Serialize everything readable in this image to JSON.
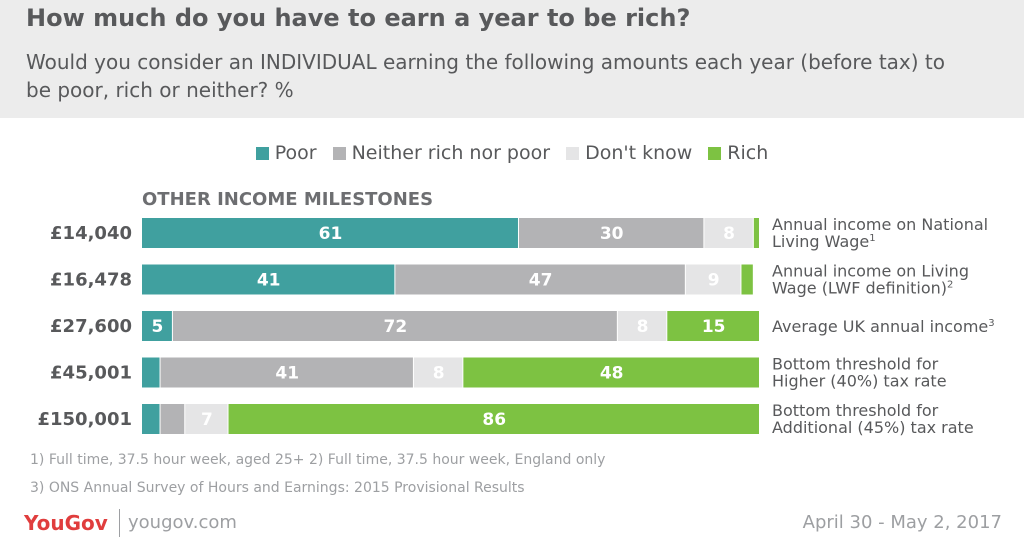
{
  "header": {
    "title": "How much do you have to earn a year to be rich?",
    "subtitle": "Would you consider an INDIVIDUAL earning the following amounts each year (before tax) to be poor, rich or neither? %"
  },
  "section_label": "OTHER INCOME MILESTONES",
  "chart_data": {
    "type": "bar",
    "orientation": "horizontal",
    "stacked": true,
    "categories": [
      "£14,040",
      "£16,478",
      "£27,600",
      "£45,001",
      "£150,001"
    ],
    "series": [
      {
        "name": "Poor",
        "color": "#40a09f",
        "values": [
          61,
          41,
          5,
          3,
          3
        ]
      },
      {
        "name": "Neither rich nor poor",
        "color": "#b3b3b5",
        "values": [
          30,
          47,
          72,
          41,
          4
        ]
      },
      {
        "name": "Don't know",
        "color": "#e5e5e6",
        "values": [
          8,
          9,
          8,
          8,
          7
        ]
      },
      {
        "name": "Rich",
        "color": "#7dc242",
        "values": [
          1,
          2,
          15,
          48,
          86
        ]
      }
    ],
    "data_labels": [
      [
        "61",
        "30",
        "8",
        ""
      ],
      [
        "41",
        "47",
        "9",
        ""
      ],
      [
        "5",
        "72",
        "8",
        "15"
      ],
      [
        "",
        "41",
        "8",
        "48"
      ],
      [
        "",
        "",
        "7",
        "86"
      ]
    ],
    "row_notes": [
      {
        "lines": [
          "Annual income on National",
          "Living Wage"
        ],
        "sup": "1"
      },
      {
        "lines": [
          "Annual income on Living",
          "Wage (LWF definition)"
        ],
        "sup": "2"
      },
      {
        "lines": [
          "Average UK annual income"
        ],
        "sup": "3"
      },
      {
        "lines": [
          "Bottom threshold for",
          "Higher (40%) tax rate"
        ],
        "sup": ""
      },
      {
        "lines": [
          "Bottom threshold for",
          "Additional (45%) tax rate"
        ],
        "sup": ""
      }
    ],
    "legend_position": "top",
    "xlim": [
      0,
      100
    ],
    "grid": false
  },
  "footnotes": {
    "line1": "1) Full time, 37.5 hour week, aged 25+   2) Full time, 37.5 hour week, England only",
    "line2": "3) ONS Annual Survey of Hours and Earnings: 2015 Provisional Results"
  },
  "footer": {
    "logo": "YouGov",
    "site": "yougov.com",
    "date": "April 30 - May 2, 2017"
  },
  "colors": {
    "poor": "#40a09f",
    "neither": "#b3b3b5",
    "dont_know": "#e5e5e6",
    "rich": "#7dc242",
    "brand": "#e03d3d"
  }
}
